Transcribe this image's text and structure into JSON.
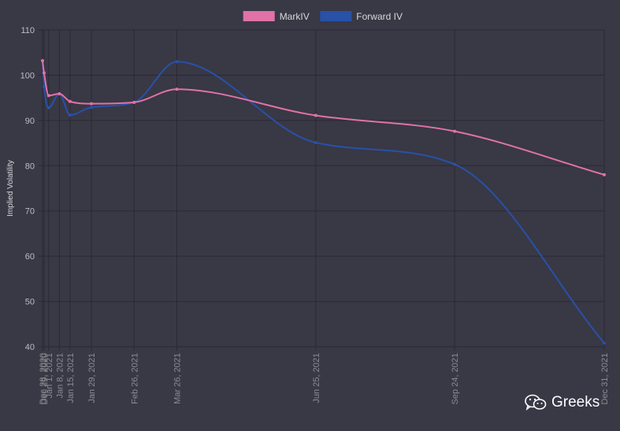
{
  "chart_data": {
    "type": "line",
    "ylabel": "Implied Volatility",
    "ylim": [
      40,
      110
    ],
    "yticks": [
      40,
      50,
      60,
      70,
      80,
      90,
      100,
      110
    ],
    "grid": true,
    "legend_position": "top-center",
    "x": [
      "Dec 28, 2020",
      "Dec 29, 2020",
      "Jan 1, 2021",
      "Jan 8, 2021",
      "Jan 15, 2021",
      "Jan 29, 2021",
      "Feb 26, 2021",
      "Mar 26, 2021",
      "Jun 25, 2021",
      "Sep 24, 2021",
      "Dec 31, 2021"
    ],
    "series": [
      {
        "name": "MarkIV",
        "color": "#e072a8",
        "values": [
          103.2,
          100.5,
          95.5,
          95.9,
          94.2,
          93.7,
          94.0,
          96.9,
          91.1,
          87.6,
          78.0
        ]
      },
      {
        "name": "Forward IV",
        "color": "#2851a8",
        "values": [
          103.2,
          97.5,
          92.8,
          95.9,
          91.2,
          92.9,
          94.0,
          103.0,
          85.1,
          80.3,
          40.8
        ]
      }
    ]
  },
  "watermark": {
    "text": "Greeks",
    "icon": "wechat-icon"
  }
}
